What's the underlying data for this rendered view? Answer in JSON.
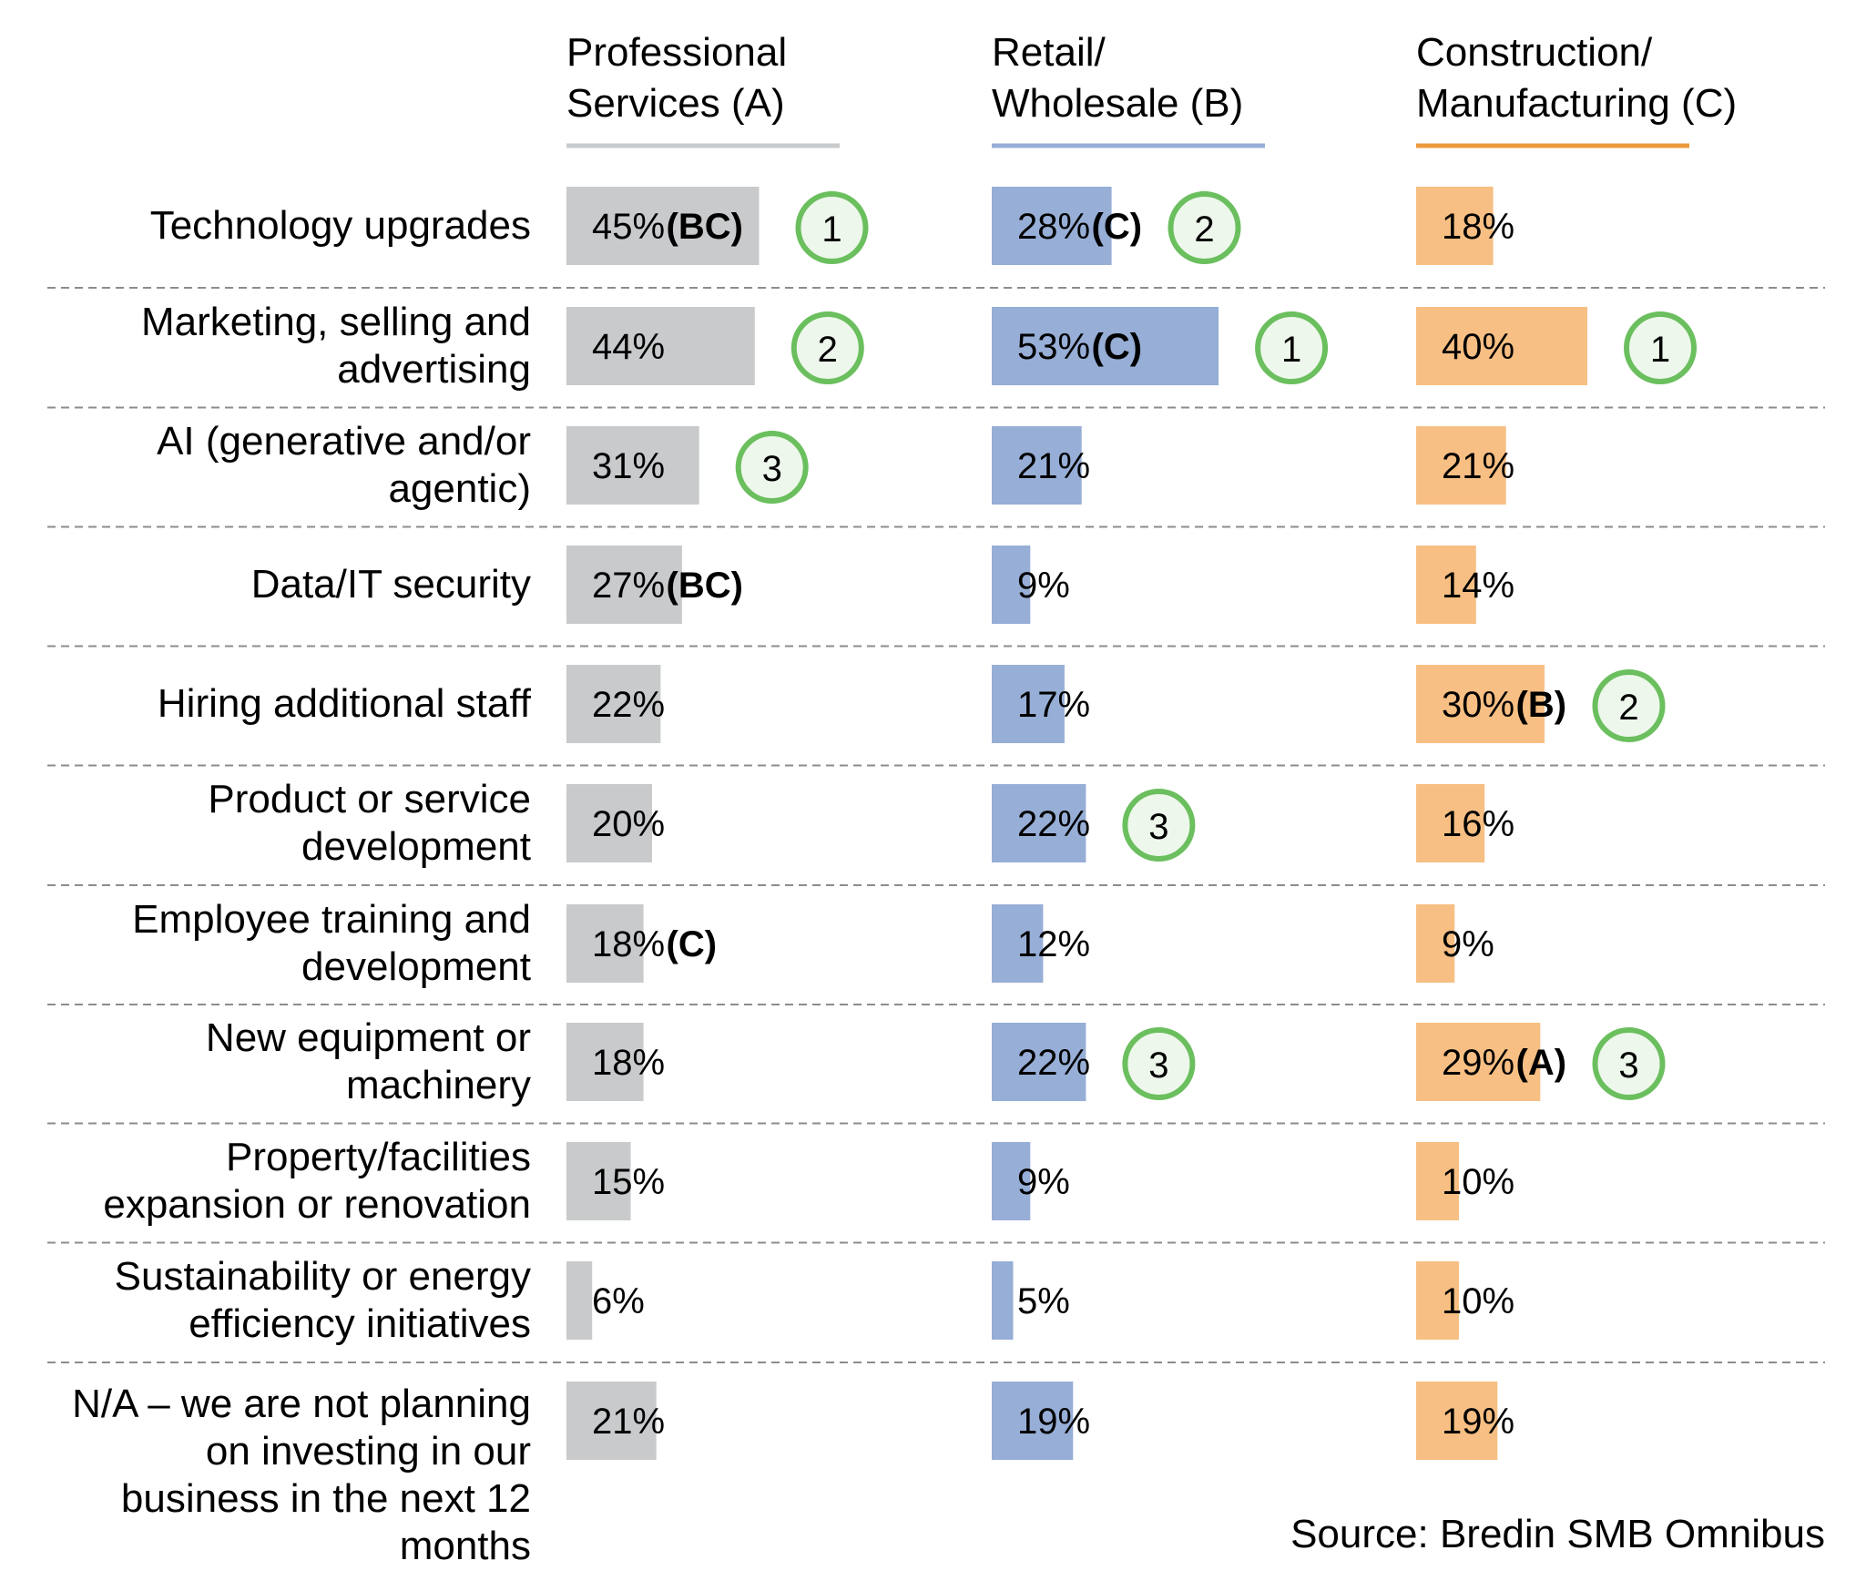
{
  "chart_data": {
    "type": "bar",
    "orientation": "horizontal",
    "title": "",
    "xlabel": "",
    "ylabel": "",
    "xlim": [
      0,
      100
    ],
    "unit": "%",
    "categories": [
      "Technology upgrades",
      "Marketing, selling and\nadvertising",
      "AI (generative and/or\nagentic)",
      "Data/IT security",
      "Hiring additional staff",
      "Product or service\ndevelopment",
      "Employee training and\ndevelopment",
      "New equipment or\nmachinery",
      "Property/facilities\nexpansion or renovation",
      "Sustainability or energy\nefficiency initiatives",
      "N/A – we are not planning\non investing in our\nbusiness in the next 12\nmonths"
    ],
    "series": [
      {
        "name": "Professional\nServices (A)",
        "color": "#c8cacc",
        "header_line_color": "#c8cacc",
        "values": [
          45,
          44,
          31,
          27,
          22,
          20,
          18,
          18,
          15,
          6,
          21
        ],
        "value_labels": [
          "45%",
          "44%",
          "31%",
          "27%",
          "22%",
          "20%",
          "18%",
          "18%",
          "15%",
          "6%",
          "21%"
        ],
        "significance": [
          "(BC)",
          "",
          "",
          "(BC)",
          "",
          "",
          "(C)",
          "",
          "",
          "",
          ""
        ],
        "rank": [
          1,
          2,
          3,
          null,
          null,
          null,
          null,
          null,
          null,
          null,
          null
        ]
      },
      {
        "name": "Retail/\nWholesale (B)",
        "color": "#97aed6",
        "header_line_color": "#97aed6",
        "values": [
          28,
          53,
          21,
          9,
          17,
          22,
          12,
          22,
          9,
          5,
          19
        ],
        "value_labels": [
          "28%",
          "53%",
          "21%",
          "9%",
          "17%",
          "22%",
          "12%",
          "22%",
          "9%",
          "5%",
          "19%"
        ],
        "significance": [
          "(C)",
          "(C)",
          "",
          "",
          "",
          "",
          "",
          "",
          "",
          "",
          ""
        ],
        "rank": [
          2,
          1,
          null,
          null,
          null,
          3,
          null,
          3,
          null,
          null,
          null
        ]
      },
      {
        "name": "Construction/\nManufacturing (C)",
        "color": "#f7bf83",
        "header_line_color": "#ec9a3c",
        "values": [
          18,
          40,
          21,
          14,
          30,
          16,
          9,
          29,
          10,
          10,
          19
        ],
        "value_labels": [
          "18%",
          "40%",
          "21%",
          "14%",
          "30%",
          "16%",
          "9%",
          "29%",
          "10%",
          "10%",
          "19%"
        ],
        "significance": [
          "",
          "",
          "",
          "",
          "(B)",
          "",
          "",
          "(A)",
          "",
          "",
          ""
        ],
        "rank": [
          null,
          1,
          null,
          null,
          2,
          null,
          null,
          3,
          null,
          null,
          null
        ]
      }
    ],
    "rank_badge_color": "#6bbf5e",
    "divider_color": "#8c8c8c",
    "source": "Source: Bredin SMB Omnibus"
  }
}
